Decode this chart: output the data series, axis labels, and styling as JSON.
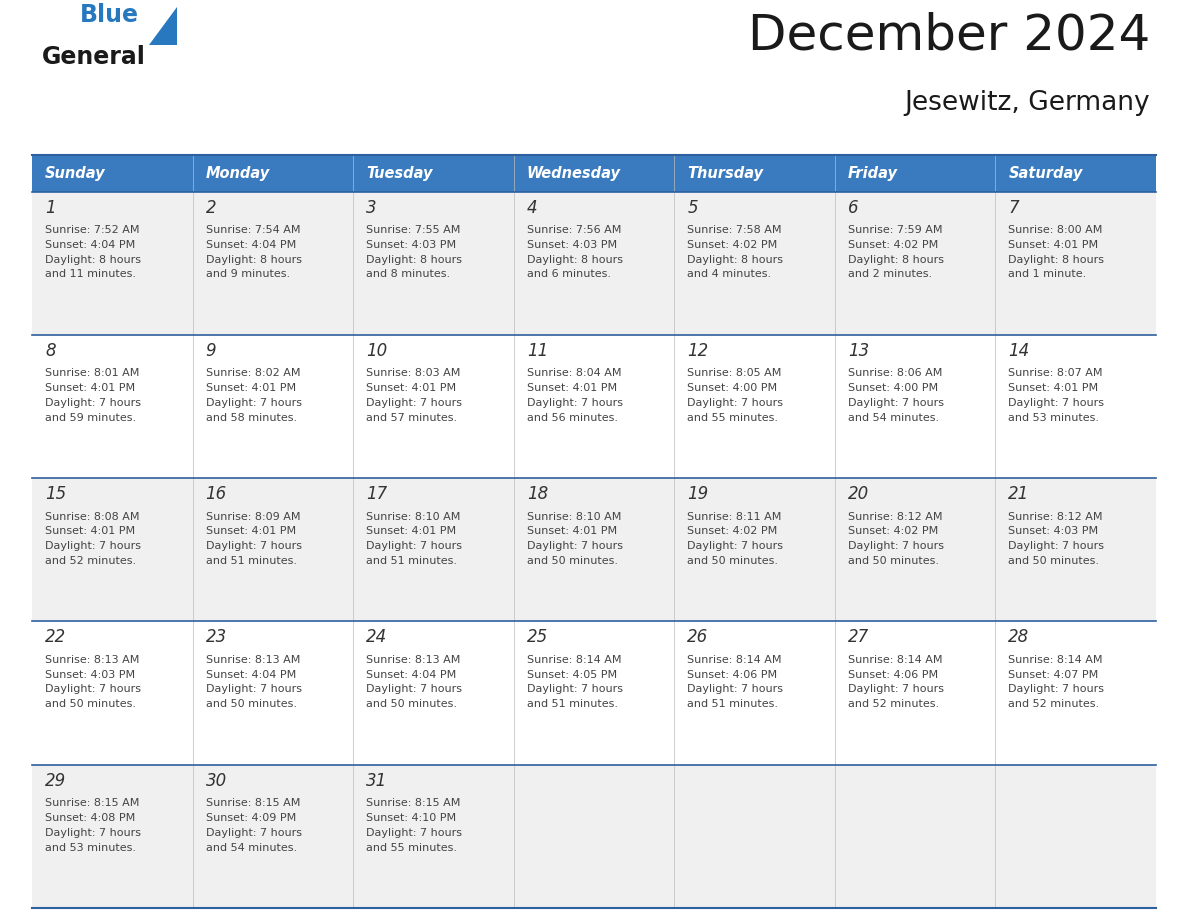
{
  "title": "December 2024",
  "subtitle": "Jesewitz, Germany",
  "header_bg": "#3a7abf",
  "header_text_color": "#ffffff",
  "days_of_week": [
    "Sunday",
    "Monday",
    "Tuesday",
    "Wednesday",
    "Thursday",
    "Friday",
    "Saturday"
  ],
  "row_bg_odd": "#f0f0f0",
  "row_bg_even": "#ffffff",
  "cell_text_color": "#444444",
  "day_num_color": "#333333",
  "divider_color": "#2e5f9e",
  "logo_general_color": "#1a1a1a",
  "logo_blue_color": "#2878c0",
  "logo_triangle_color": "#2878c0",
  "title_color": "#1a1a1a",
  "subtitle_color": "#1a1a1a",
  "calendar_data": [
    [
      {
        "day": 1,
        "sunrise": "7:52 AM",
        "sunset": "4:04 PM",
        "daylight_line1": "Daylight: 8 hours",
        "daylight_line2": "and 11 minutes."
      },
      {
        "day": 2,
        "sunrise": "7:54 AM",
        "sunset": "4:04 PM",
        "daylight_line1": "Daylight: 8 hours",
        "daylight_line2": "and 9 minutes."
      },
      {
        "day": 3,
        "sunrise": "7:55 AM",
        "sunset": "4:03 PM",
        "daylight_line1": "Daylight: 8 hours",
        "daylight_line2": "and 8 minutes."
      },
      {
        "day": 4,
        "sunrise": "7:56 AM",
        "sunset": "4:03 PM",
        "daylight_line1": "Daylight: 8 hours",
        "daylight_line2": "and 6 minutes."
      },
      {
        "day": 5,
        "sunrise": "7:58 AM",
        "sunset": "4:02 PM",
        "daylight_line1": "Daylight: 8 hours",
        "daylight_line2": "and 4 minutes."
      },
      {
        "day": 6,
        "sunrise": "7:59 AM",
        "sunset": "4:02 PM",
        "daylight_line1": "Daylight: 8 hours",
        "daylight_line2": "and 2 minutes."
      },
      {
        "day": 7,
        "sunrise": "8:00 AM",
        "sunset": "4:01 PM",
        "daylight_line1": "Daylight: 8 hours",
        "daylight_line2": "and 1 minute."
      }
    ],
    [
      {
        "day": 8,
        "sunrise": "8:01 AM",
        "sunset": "4:01 PM",
        "daylight_line1": "Daylight: 7 hours",
        "daylight_line2": "and 59 minutes."
      },
      {
        "day": 9,
        "sunrise": "8:02 AM",
        "sunset": "4:01 PM",
        "daylight_line1": "Daylight: 7 hours",
        "daylight_line2": "and 58 minutes."
      },
      {
        "day": 10,
        "sunrise": "8:03 AM",
        "sunset": "4:01 PM",
        "daylight_line1": "Daylight: 7 hours",
        "daylight_line2": "and 57 minutes."
      },
      {
        "day": 11,
        "sunrise": "8:04 AM",
        "sunset": "4:01 PM",
        "daylight_line1": "Daylight: 7 hours",
        "daylight_line2": "and 56 minutes."
      },
      {
        "day": 12,
        "sunrise": "8:05 AM",
        "sunset": "4:00 PM",
        "daylight_line1": "Daylight: 7 hours",
        "daylight_line2": "and 55 minutes."
      },
      {
        "day": 13,
        "sunrise": "8:06 AM",
        "sunset": "4:00 PM",
        "daylight_line1": "Daylight: 7 hours",
        "daylight_line2": "and 54 minutes."
      },
      {
        "day": 14,
        "sunrise": "8:07 AM",
        "sunset": "4:01 PM",
        "daylight_line1": "Daylight: 7 hours",
        "daylight_line2": "and 53 minutes."
      }
    ],
    [
      {
        "day": 15,
        "sunrise": "8:08 AM",
        "sunset": "4:01 PM",
        "daylight_line1": "Daylight: 7 hours",
        "daylight_line2": "and 52 minutes."
      },
      {
        "day": 16,
        "sunrise": "8:09 AM",
        "sunset": "4:01 PM",
        "daylight_line1": "Daylight: 7 hours",
        "daylight_line2": "and 51 minutes."
      },
      {
        "day": 17,
        "sunrise": "8:10 AM",
        "sunset": "4:01 PM",
        "daylight_line1": "Daylight: 7 hours",
        "daylight_line2": "and 51 minutes."
      },
      {
        "day": 18,
        "sunrise": "8:10 AM",
        "sunset": "4:01 PM",
        "daylight_line1": "Daylight: 7 hours",
        "daylight_line2": "and 50 minutes."
      },
      {
        "day": 19,
        "sunrise": "8:11 AM",
        "sunset": "4:02 PM",
        "daylight_line1": "Daylight: 7 hours",
        "daylight_line2": "and 50 minutes."
      },
      {
        "day": 20,
        "sunrise": "8:12 AM",
        "sunset": "4:02 PM",
        "daylight_line1": "Daylight: 7 hours",
        "daylight_line2": "and 50 minutes."
      },
      {
        "day": 21,
        "sunrise": "8:12 AM",
        "sunset": "4:03 PM",
        "daylight_line1": "Daylight: 7 hours",
        "daylight_line2": "and 50 minutes."
      }
    ],
    [
      {
        "day": 22,
        "sunrise": "8:13 AM",
        "sunset": "4:03 PM",
        "daylight_line1": "Daylight: 7 hours",
        "daylight_line2": "and 50 minutes."
      },
      {
        "day": 23,
        "sunrise": "8:13 AM",
        "sunset": "4:04 PM",
        "daylight_line1": "Daylight: 7 hours",
        "daylight_line2": "and 50 minutes."
      },
      {
        "day": 24,
        "sunrise": "8:13 AM",
        "sunset": "4:04 PM",
        "daylight_line1": "Daylight: 7 hours",
        "daylight_line2": "and 50 minutes."
      },
      {
        "day": 25,
        "sunrise": "8:14 AM",
        "sunset": "4:05 PM",
        "daylight_line1": "Daylight: 7 hours",
        "daylight_line2": "and 51 minutes."
      },
      {
        "day": 26,
        "sunrise": "8:14 AM",
        "sunset": "4:06 PM",
        "daylight_line1": "Daylight: 7 hours",
        "daylight_line2": "and 51 minutes."
      },
      {
        "day": 27,
        "sunrise": "8:14 AM",
        "sunset": "4:06 PM",
        "daylight_line1": "Daylight: 7 hours",
        "daylight_line2": "and 52 minutes."
      },
      {
        "day": 28,
        "sunrise": "8:14 AM",
        "sunset": "4:07 PM",
        "daylight_line1": "Daylight: 7 hours",
        "daylight_line2": "and 52 minutes."
      }
    ],
    [
      {
        "day": 29,
        "sunrise": "8:15 AM",
        "sunset": "4:08 PM",
        "daylight_line1": "Daylight: 7 hours",
        "daylight_line2": "and 53 minutes."
      },
      {
        "day": 30,
        "sunrise": "8:15 AM",
        "sunset": "4:09 PM",
        "daylight_line1": "Daylight: 7 hours",
        "daylight_line2": "and 54 minutes."
      },
      {
        "day": 31,
        "sunrise": "8:15 AM",
        "sunset": "4:10 PM",
        "daylight_line1": "Daylight: 7 hours",
        "daylight_line2": "and 55 minutes."
      },
      null,
      null,
      null,
      null
    ]
  ]
}
